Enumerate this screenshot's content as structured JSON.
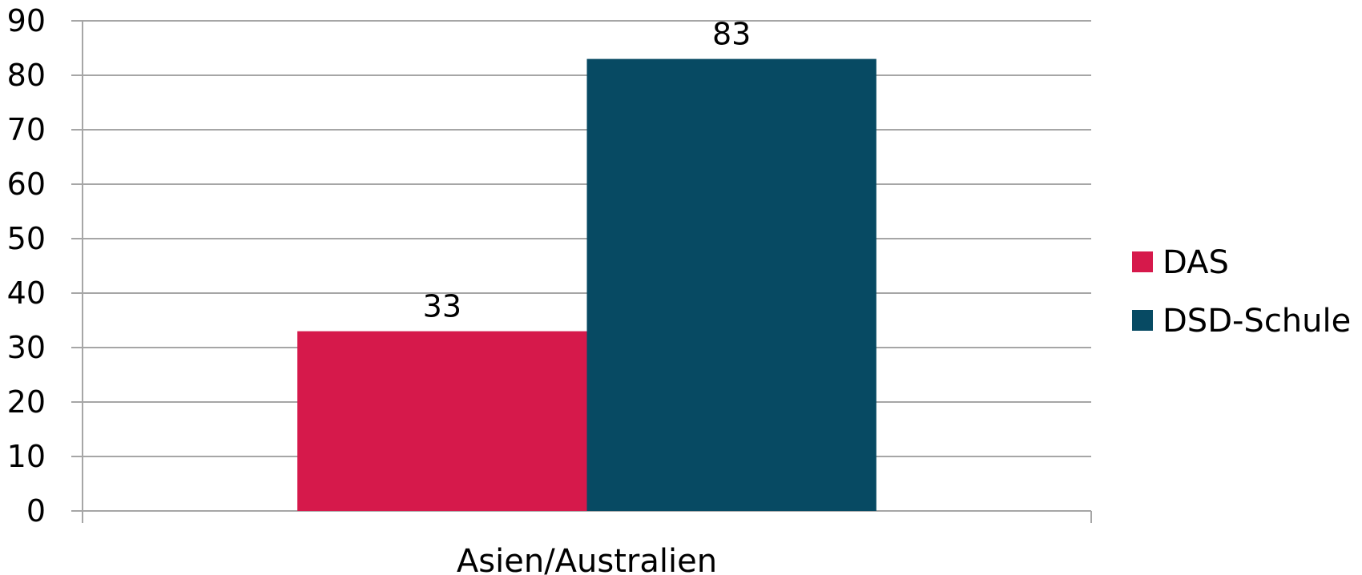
{
  "chart_data": {
    "type": "bar",
    "categories": [
      "Asien/Australien"
    ],
    "series": [
      {
        "name": "DAS",
        "values": [
          33
        ],
        "color": "#D6194B"
      },
      {
        "name": "DSD-Schule",
        "values": [
          83
        ],
        "color": "#074A63"
      }
    ],
    "title": "",
    "xlabel": "",
    "ylabel": "",
    "ylim": [
      0,
      90
    ],
    "yticks": [
      0,
      10,
      20,
      30,
      40,
      50,
      60,
      70,
      80,
      90
    ],
    "grid": true,
    "legend_position": "right",
    "data_labels": true,
    "gridline_color": "#A6A6A6",
    "axis_color": "#A6A6A6"
  }
}
